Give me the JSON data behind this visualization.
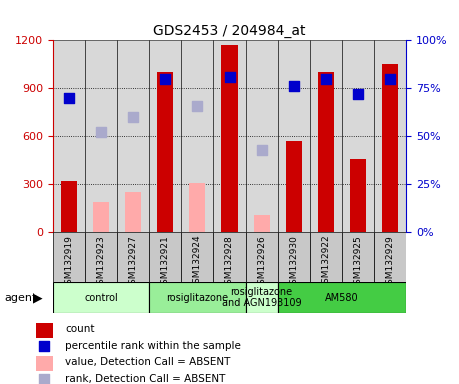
{
  "title": "GDS2453 / 204984_at",
  "samples": [
    "GSM132919",
    "GSM132923",
    "GSM132927",
    "GSM132921",
    "GSM132924",
    "GSM132928",
    "GSM132926",
    "GSM132930",
    "GSM132922",
    "GSM132925",
    "GSM132929"
  ],
  "count_values": [
    320,
    null,
    null,
    1000,
    null,
    1170,
    null,
    570,
    1000,
    460,
    1050
  ],
  "count_absent_values": [
    null,
    190,
    250,
    null,
    310,
    null,
    110,
    null,
    null,
    null,
    null
  ],
  "rank_values_pct": [
    70,
    null,
    null,
    80,
    null,
    81,
    null,
    76,
    80,
    72,
    80
  ],
  "rank_absent_values_pct": [
    null,
    52,
    60,
    null,
    66,
    null,
    null,
    null,
    null,
    null,
    null
  ],
  "rank_absent2_values_pct": [
    null,
    null,
    null,
    null,
    null,
    null,
    43,
    null,
    null,
    null,
    null
  ],
  "ylim_left": [
    0,
    1200
  ],
  "ylim_right": [
    0,
    100
  ],
  "yticks_left": [
    0,
    300,
    600,
    900,
    1200
  ],
  "yticks_right": [
    0,
    25,
    50,
    75,
    100
  ],
  "count_color": "#cc0000",
  "count_absent_color": "#ffaaaa",
  "rank_color": "#0000cc",
  "rank_absent_color": "#aaaacc",
  "bar_width": 0.5,
  "dot_size": 60,
  "groups": [
    {
      "label": "control",
      "xmin": -0.5,
      "xmax": 2.5,
      "color": "#ccffcc"
    },
    {
      "label": "rosiglitazone",
      "xmin": 2.5,
      "xmax": 5.5,
      "color": "#99ee99"
    },
    {
      "label": "rosiglitazone\nand AGN193109",
      "xmin": 5.5,
      "xmax": 6.5,
      "color": "#ccffcc"
    },
    {
      "label": "AM580",
      "xmin": 6.5,
      "xmax": 10.5,
      "color": "#44cc44"
    }
  ],
  "legend_items": [
    {
      "label": "count",
      "color": "#cc0000",
      "type": "bar"
    },
    {
      "label": "percentile rank within the sample",
      "color": "#0000cc",
      "type": "dot"
    },
    {
      "label": "value, Detection Call = ABSENT",
      "color": "#ffaaaa",
      "type": "bar"
    },
    {
      "label": "rank, Detection Call = ABSENT",
      "color": "#aaaacc",
      "type": "dot"
    }
  ]
}
